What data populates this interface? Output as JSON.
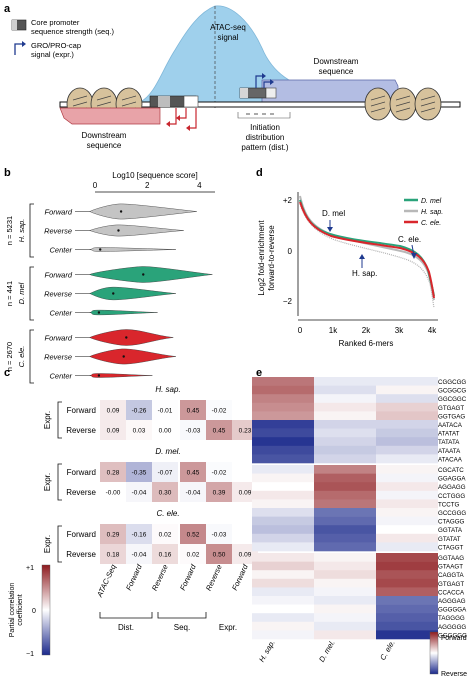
{
  "panels": {
    "a": {
      "label": "a",
      "legend": [
        {
          "text": "Core promoter",
          "sub": "sequence strength (seq.)"
        },
        {
          "text": "GRO/PRO-cap",
          "sub": "signal (expr.)"
        }
      ],
      "atac_label": [
        "ATAC-seq",
        "signal"
      ],
      "downstream_right": [
        "Downstream",
        "sequence"
      ],
      "downstream_left": [
        "Downstream",
        "sequence"
      ],
      "initiation": [
        "Initiation",
        "distribution",
        "pattern (dist.)"
      ],
      "colors": {
        "atac": "#9fd0ec",
        "left_seq": "#e8a3a8",
        "right_seq": "#b3bde3",
        "arrow": "#c8262e",
        "arrow2": "#1f3a8f"
      }
    },
    "b": {
      "label": "b",
      "axis_title": "Log10 [sequence score]",
      "ticks": [
        "0",
        "2",
        "4"
      ],
      "tick_values": [
        0,
        2,
        4
      ],
      "x_range": [
        0,
        4.6
      ],
      "groups": [
        {
          "species": "H. sap.",
          "n": "n = 5231",
          "color": "#c4c4c4",
          "rows": [
            {
              "name": "Forward",
              "median": 1.0,
              "spread": 3.9,
              "height": 0.95
            },
            {
              "name": "Reverse",
              "median": 0.9,
              "spread": 3.4,
              "height": 0.7
            },
            {
              "name": "Center",
              "median": 0.2,
              "spread": 3.1,
              "height": 0.25
            }
          ]
        },
        {
          "species": "D. mel",
          "n": "n = 441",
          "color": "#2aa37a",
          "rows": [
            {
              "name": "Forward",
              "median": 1.85,
              "spread": 4.5,
              "height": 1.0
            },
            {
              "name": "Reverse",
              "median": 0.7,
              "spread": 3.1,
              "height": 0.8
            },
            {
              "name": "Center",
              "median": 0.15,
              "spread": 2.4,
              "height": 0.3
            }
          ]
        },
        {
          "species": "C. ele.",
          "n": "n = 2670",
          "color": "#d9262c",
          "rows": [
            {
              "name": "Forward",
              "median": 1.2,
              "spread": 3.0,
              "height": 1.0
            },
            {
              "name": "Reverse",
              "median": 1.1,
              "spread": 3.1,
              "height": 0.95
            },
            {
              "name": "Center",
              "median": 0.15,
              "spread": 2.2,
              "height": 0.25
            }
          ]
        }
      ]
    },
    "c": {
      "label": "c",
      "columns": [
        "ATAC-Seq",
        "Forward",
        "Reverse",
        "Forward",
        "Reverse",
        "Forward"
      ],
      "column_groups": [
        "Dist.",
        "Seq.",
        "Expr."
      ],
      "row_group_label": "Expr.",
      "species_blocks": [
        {
          "species": "H. sap.",
          "rows": [
            {
              "name": "Forward",
              "values": [
                "0.09",
                "-0.26",
                "-0.01",
                "0.45",
                "-0.02",
                null
              ]
            },
            {
              "name": "Reverse",
              "values": [
                "0.09",
                "0.03",
                "0.00",
                "-0.03",
                "0.45",
                "0.23"
              ]
            }
          ]
        },
        {
          "species": "D. mel.",
          "rows": [
            {
              "name": "Forward",
              "values": [
                "0.28",
                "-0.35",
                "-0.07",
                "0.45",
                "-0.02",
                null
              ]
            },
            {
              "name": "Reverse",
              "values": [
                "-0.00",
                "-0.04",
                "0.30",
                "-0.04",
                "0.39",
                "0.09"
              ]
            }
          ]
        },
        {
          "species": "C. ele.",
          "rows": [
            {
              "name": "Forward",
              "values": [
                "0.29",
                "-0.16",
                "0.02",
                "0.52",
                "-0.03",
                null
              ]
            },
            {
              "name": "Reverse",
              "values": [
                "0.18",
                "-0.04",
                "0.16",
                "0.02",
                "0.50",
                "0.09"
              ]
            }
          ]
        }
      ],
      "colorbar": {
        "title": [
          "Partial correlation",
          "coefficient"
        ],
        "max": "+1",
        "mid": "0",
        "min": "−1"
      }
    },
    "d": {
      "label": "d",
      "ylabel": [
        "Log2 fold-enrichment",
        "forward-to-reverse"
      ],
      "xlabel": "Ranked 6-mers",
      "yticks": [
        "+2",
        "0",
        "−2"
      ],
      "xticks": [
        "0",
        "1k",
        "2k",
        "3k",
        "4k"
      ],
      "annotations": [
        "D. mel",
        "H. sap.",
        "C. ele."
      ],
      "legend": [
        {
          "name": "D. mel",
          "color": "#2aa37a"
        },
        {
          "name": "H. sap.",
          "color": "#b8b8b8"
        },
        {
          "name": "C. ele.",
          "color": "#d9262c"
        }
      ]
    },
    "e": {
      "label": "e",
      "columns": [
        "H. sap.",
        "D. mel.",
        "C. ele."
      ],
      "blocks": [
        {
          "kmers": [
            "CGGCGG",
            "GCGGCG",
            "GGCGGC",
            "GTGAGT",
            "GGTGAG",
            "AATACA",
            "ATATAT",
            "TATATA",
            "ATAATA",
            "ATACAA"
          ],
          "values": [
            [
              0.6,
              -0.1,
              -0.1
            ],
            [
              0.65,
              -0.15,
              0.05
            ],
            [
              0.55,
              -0.05,
              -0.15
            ],
            [
              0.5,
              0.1,
              0.2
            ],
            [
              0.45,
              0.05,
              0.25
            ],
            [
              -0.9,
              -0.2,
              -0.2
            ],
            [
              -0.85,
              -0.15,
              -0.25
            ],
            [
              -0.95,
              -0.2,
              -0.3
            ],
            [
              -0.85,
              -0.25,
              -0.2
            ],
            [
              -0.8,
              -0.2,
              -0.1
            ]
          ]
        },
        {
          "kmers": [
            "CGCATC",
            "GGAGGA",
            "AGGAGG",
            "CCTGGG",
            "TCCTG",
            "GCCGGG",
            "CTAGGG",
            "GGTATA",
            "GTATAT",
            "CTAGGT"
          ],
          "values": [
            [
              -0.1,
              0.55,
              0.05
            ],
            [
              0.05,
              0.7,
              -0.05
            ],
            [
              0.0,
              0.75,
              0.1
            ],
            [
              0.1,
              0.65,
              -0.05
            ],
            [
              0.05,
              0.6,
              0.1
            ],
            [
              -0.15,
              -0.65,
              0.05
            ],
            [
              -0.25,
              -0.7,
              -0.05
            ],
            [
              -0.3,
              -0.8,
              0.0
            ],
            [
              -0.2,
              -0.75,
              0.1
            ],
            [
              -0.1,
              -0.7,
              -0.1
            ]
          ]
        },
        {
          "kmers": [
            "GGTAAG",
            "GTAAGT",
            "CAGGTA",
            "GTGAGT",
            "CCACCA",
            "AGGGAG",
            "GGGGGA",
            "TAGGGG",
            "AGGGGG",
            "GGGGGG"
          ],
          "values": [
            [
              0.1,
              0.05,
              0.8
            ],
            [
              0.2,
              0.1,
              0.85
            ],
            [
              0.05,
              0.15,
              0.75
            ],
            [
              0.15,
              0.05,
              0.8
            ],
            [
              -0.1,
              -0.05,
              0.7
            ],
            [
              -0.05,
              -0.1,
              -0.65
            ],
            [
              0.0,
              0.05,
              -0.7
            ],
            [
              -0.1,
              -0.05,
              -0.75
            ],
            [
              0.05,
              -0.1,
              -0.8
            ],
            [
              -0.05,
              0.1,
              -0.95
            ]
          ]
        }
      ],
      "colorbar": {
        "top": "Forward",
        "bottom": "Reverse"
      }
    }
  }
}
